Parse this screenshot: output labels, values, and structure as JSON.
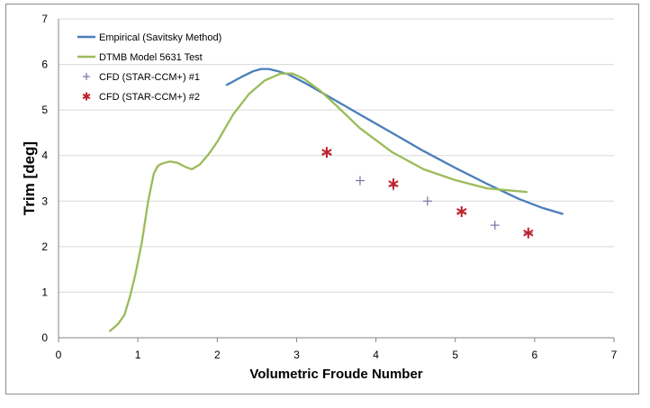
{
  "chart_data": {
    "type": "line",
    "title": "",
    "xlabel": "Volumetric Froude Number",
    "ylabel": "Trim [deg]",
    "xlim": [
      0,
      7
    ],
    "ylim": [
      0,
      7
    ],
    "xticks": [
      0,
      1,
      2,
      3,
      4,
      5,
      6,
      7
    ],
    "yticks": [
      0,
      1,
      2,
      3,
      4,
      5,
      6,
      7
    ],
    "grid": "horizontal",
    "legend_position": "top-left",
    "series": [
      {
        "name": "Empirical (Savitsky Method)",
        "style": "line",
        "color": "#4a7ebb",
        "x": [
          2.12,
          2.3,
          2.45,
          2.55,
          2.65,
          2.75,
          2.9,
          3.1,
          3.4,
          3.8,
          4.2,
          4.6,
          5.0,
          5.4,
          5.8,
          6.1,
          6.35
        ],
        "y": [
          5.55,
          5.72,
          5.85,
          5.9,
          5.9,
          5.86,
          5.78,
          5.6,
          5.3,
          4.9,
          4.5,
          4.1,
          3.73,
          3.38,
          3.05,
          2.85,
          2.72
        ]
      },
      {
        "name": "DTMB Model 5631 Test",
        "style": "line",
        "color": "#9bbb59",
        "x": [
          0.65,
          0.75,
          0.83,
          0.9,
          0.97,
          1.05,
          1.13,
          1.2,
          1.25,
          1.3,
          1.4,
          1.5,
          1.6,
          1.68,
          1.78,
          1.9,
          2.0,
          2.2,
          2.4,
          2.6,
          2.8,
          2.95,
          3.1,
          3.3,
          3.5,
          3.8,
          4.2,
          4.6,
          5.0,
          5.4,
          5.9
        ],
        "y": [
          0.15,
          0.3,
          0.5,
          0.9,
          1.4,
          2.1,
          3.0,
          3.6,
          3.77,
          3.82,
          3.87,
          3.84,
          3.75,
          3.7,
          3.8,
          4.05,
          4.3,
          4.9,
          5.35,
          5.65,
          5.8,
          5.8,
          5.68,
          5.42,
          5.1,
          4.6,
          4.08,
          3.7,
          3.46,
          3.28,
          3.2
        ]
      },
      {
        "name": "CFD (STAR-CCM+) #1",
        "style": "marker-plus",
        "color": "#7f6fa8",
        "x": [
          3.38,
          3.8,
          4.22,
          4.65,
          5.08,
          5.5,
          5.92
        ],
        "y": [
          4.05,
          3.45,
          3.33,
          3.0,
          2.75,
          2.47,
          2.3
        ]
      },
      {
        "name": "CFD (STAR-CCM+) #2",
        "style": "marker-asterisk",
        "color": "#c0202a",
        "x": [
          3.38,
          4.22,
          5.08,
          5.92
        ],
        "y": [
          4.07,
          3.38,
          2.77,
          2.3
        ]
      }
    ]
  }
}
